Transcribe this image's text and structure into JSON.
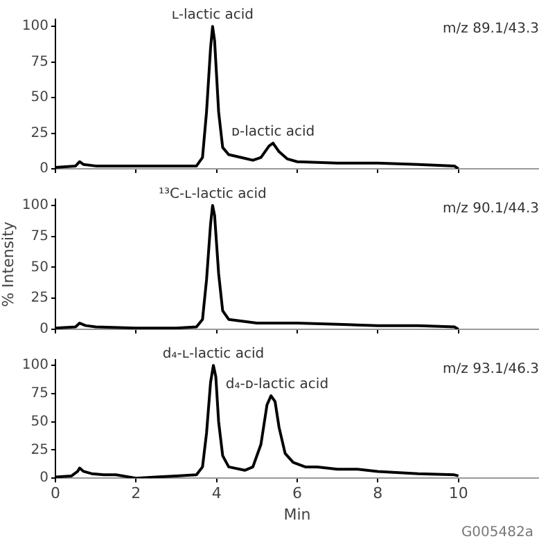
{
  "chart_data": [
    {
      "type": "line",
      "xlim": [
        0,
        12
      ],
      "ylim": [
        0,
        105
      ],
      "xticks": [
        0,
        2,
        4,
        6,
        8,
        10
      ],
      "yticks": [
        0,
        25,
        50,
        75,
        100
      ],
      "tick_labels": "y",
      "x": [
        0,
        0.5,
        0.6,
        0.7,
        1,
        2,
        3,
        3.5,
        3.65,
        3.75,
        3.85,
        3.9,
        3.95,
        4.05,
        4.15,
        4.3,
        4.6,
        4.9,
        5.1,
        5.3,
        5.4,
        5.55,
        5.75,
        6,
        7,
        8,
        9,
        9.9,
        10
      ],
      "series": [
        {
          "color": "#000000",
          "values": [
            1,
            2,
            5,
            3,
            2,
            2,
            2,
            2,
            8,
            40,
            85,
            100,
            90,
            40,
            15,
            10,
            8,
            6,
            8,
            16,
            18,
            12,
            7,
            5,
            4,
            4,
            3,
            2,
            0
          ]
        }
      ],
      "annotations": [
        "m/z 89.1/43.3",
        {
          "text": "ʟ-lactic acid",
          "x": 3.9,
          "y": 100
        },
        {
          "text": "ᴅ-lactic acid",
          "x": 5.4,
          "y": 18
        }
      ]
    },
    {
      "type": "line",
      "xlim": [
        0,
        12
      ],
      "ylim": [
        0,
        105
      ],
      "xticks": [
        0,
        2,
        4,
        6,
        8,
        10
      ],
      "yticks": [
        0,
        25,
        50,
        75,
        100
      ],
      "tick_labels": "y",
      "ylabel": "% Intensity",
      "x": [
        0,
        0.5,
        0.6,
        0.75,
        1,
        2,
        3,
        3.5,
        3.65,
        3.75,
        3.85,
        3.9,
        3.95,
        4.05,
        4.15,
        4.3,
        5,
        6,
        7,
        8,
        9,
        9.9,
        10
      ],
      "series": [
        {
          "color": "#000000",
          "values": [
            1,
            2,
            5,
            3,
            2,
            1,
            1,
            2,
            8,
            40,
            85,
            100,
            92,
            45,
            15,
            8,
            5,
            5,
            4,
            3,
            3,
            2,
            0
          ]
        }
      ],
      "annotations": [
        "m/z 90.1/44.3",
        {
          "text": "¹³C-ʟ-lactic acid",
          "x": 3.9,
          "y": 100
        }
      ]
    },
    {
      "type": "line",
      "xlim": [
        0,
        12
      ],
      "ylim": [
        0,
        105
      ],
      "xticks": [
        0,
        2,
        4,
        6,
        8,
        10
      ],
      "yticks": [
        0,
        25,
        50,
        75,
        100
      ],
      "xlabel": "Min",
      "x": [
        0,
        0.4,
        0.55,
        0.6,
        0.7,
        0.9,
        1.2,
        1.5,
        2,
        2.5,
        3,
        3.5,
        3.65,
        3.75,
        3.85,
        3.92,
        3.98,
        4.05,
        4.15,
        4.3,
        4.7,
        4.9,
        5.1,
        5.25,
        5.35,
        5.45,
        5.55,
        5.7,
        5.9,
        6.2,
        6.5,
        7,
        7.5,
        8,
        9,
        9.9,
        10
      ],
      "series": [
        {
          "color": "#000000",
          "values": [
            1,
            2,
            6,
            9,
            6,
            4,
            3,
            3,
            0,
            1,
            2,
            3,
            10,
            40,
            85,
            100,
            90,
            50,
            20,
            10,
            7,
            10,
            30,
            65,
            73,
            68,
            45,
            22,
            14,
            10,
            10,
            8,
            8,
            6,
            4,
            3,
            2
          ]
        }
      ],
      "annotations": [
        "m/z 93.1/46.3",
        {
          "text": "d₄-ʟ-lactic acid",
          "x": 3.92,
          "y": 100
        },
        {
          "text": "d₄-ᴅ-lactic acid",
          "x": 5.5,
          "y": 73
        },
        "G005482a"
      ]
    }
  ]
}
